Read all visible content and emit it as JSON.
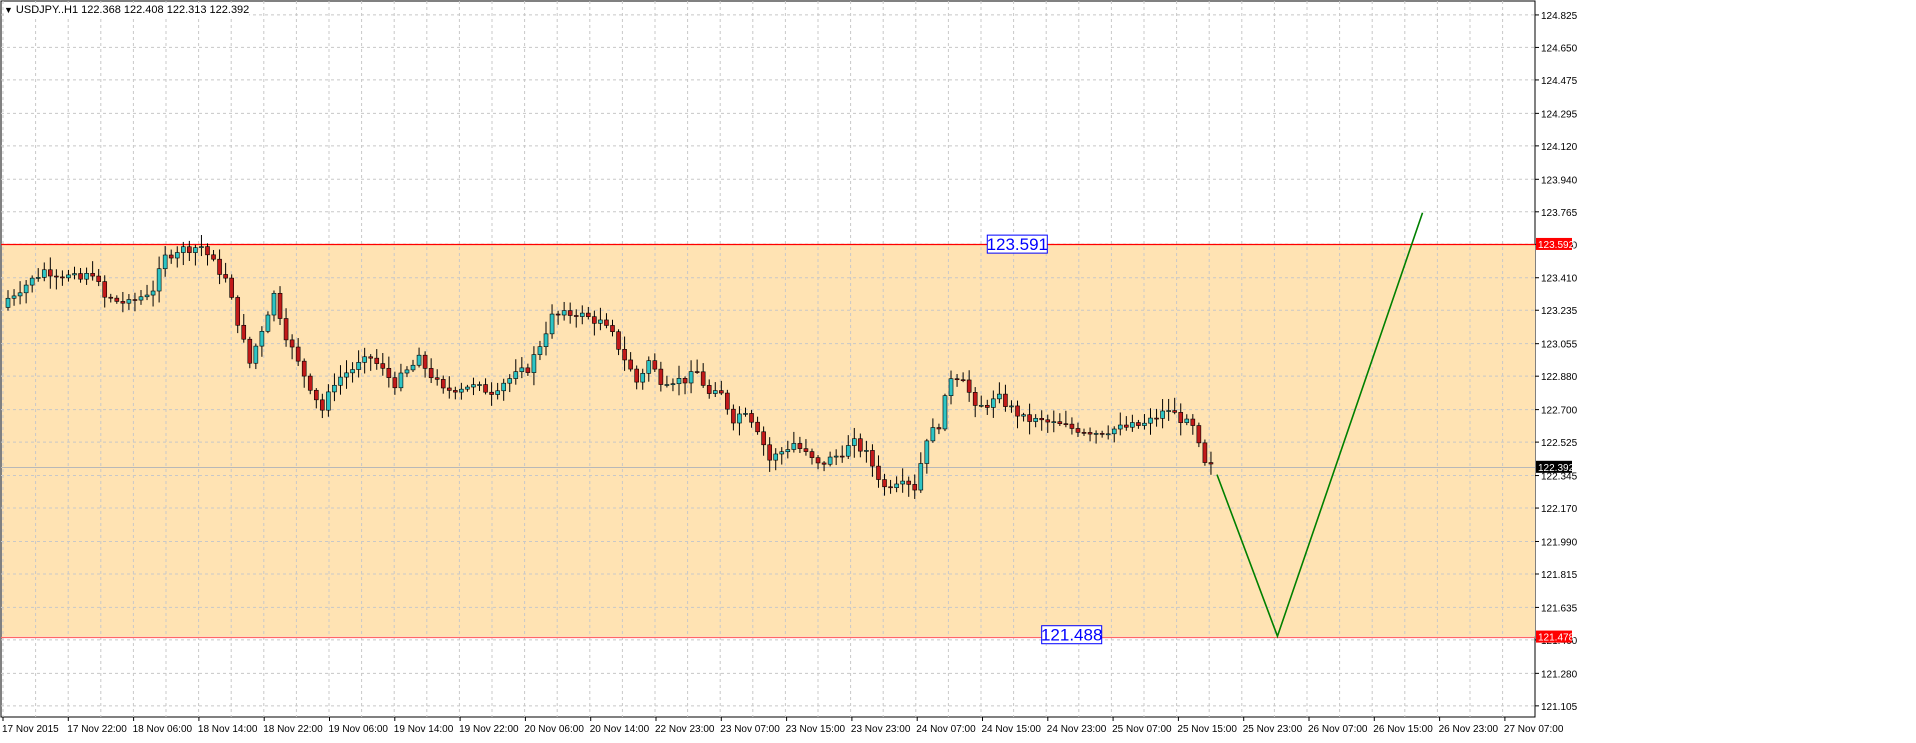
{
  "header": {
    "menu_icon": "triangle-down-icon",
    "symbol": "USDJPY..H1",
    "ohlc": "122.368 122.408 122.313 122.392"
  },
  "colors": {
    "background": "#ffffff",
    "zone_fill": "#ffe3b3",
    "grid": "#c8c8c8",
    "bull_candle": "#2ec4c4",
    "bear_candle": "#c21a1a",
    "candle_outline": "#000000",
    "upper_line": "#ff0000",
    "lower_line": "#ff6666",
    "projection_line": "#008000",
    "label_text": "#0000ff",
    "label_border": "#0000ff"
  },
  "chart_data": {
    "type": "candlestick",
    "symbol": "USDJPY",
    "timeframe": "H1",
    "y_ticks": [
      "124.825",
      "124.650",
      "124.475",
      "124.295",
      "124.120",
      "123.940",
      "123.765",
      "123.590",
      "123.410",
      "123.235",
      "123.055",
      "122.880",
      "122.700",
      "122.525",
      "122.345",
      "122.170",
      "121.990",
      "121.815",
      "121.635",
      "121.460",
      "121.280",
      "121.105"
    ],
    "ylim": [
      121.05,
      124.95
    ],
    "x_labels": [
      "17 Nov 2015",
      "17 Nov 22:00",
      "18 Nov 06:00",
      "18 Nov 14:00",
      "18 Nov 22:00",
      "19 Nov 06:00",
      "19 Nov 14:00",
      "19 Nov 22:00",
      "20 Nov 06:00",
      "20 Nov 14:00",
      "22 Nov 23:00",
      "23 Nov 07:00",
      "23 Nov 15:00",
      "23 Nov 23:00",
      "24 Nov 07:00",
      "24 Nov 15:00",
      "24 Nov 23:00",
      "25 Nov 07:00",
      "25 Nov 15:00",
      "25 Nov 23:00",
      "26 Nov 07:00",
      "26 Nov 15:00",
      "26 Nov 23:00",
      "27 Nov 07:00"
    ],
    "candle_count": 200,
    "candle_anchors": [
      [
        0,
        123.3
      ],
      [
        6,
        123.45
      ],
      [
        12,
        123.4
      ],
      [
        14,
        123.44
      ],
      [
        16,
        123.3
      ],
      [
        20,
        123.27
      ],
      [
        24,
        123.35
      ],
      [
        26,
        123.52
      ],
      [
        28,
        123.56
      ],
      [
        32,
        123.58
      ],
      [
        36,
        123.4
      ],
      [
        40,
        122.95
      ],
      [
        44,
        123.32
      ],
      [
        46,
        123.1
      ],
      [
        48,
        122.95
      ],
      [
        52,
        122.7
      ],
      [
        54,
        122.85
      ],
      [
        56,
        122.9
      ],
      [
        60,
        122.98
      ],
      [
        64,
        122.84
      ],
      [
        68,
        122.97
      ],
      [
        72,
        122.8
      ],
      [
        76,
        122.83
      ],
      [
        80,
        122.8
      ],
      [
        82,
        122.85
      ],
      [
        86,
        122.92
      ],
      [
        88,
        123.05
      ],
      [
        90,
        123.2
      ],
      [
        94,
        123.22
      ],
      [
        98,
        123.17
      ],
      [
        100,
        123.1
      ],
      [
        104,
        122.85
      ],
      [
        106,
        122.96
      ],
      [
        108,
        122.86
      ],
      [
        112,
        122.86
      ],
      [
        114,
        122.9
      ],
      [
        116,
        122.78
      ],
      [
        118,
        122.78
      ],
      [
        120,
        122.65
      ],
      [
        122,
        122.7
      ],
      [
        124,
        122.6
      ],
      [
        126,
        122.43
      ],
      [
        130,
        122.52
      ],
      [
        134,
        122.4
      ],
      [
        137,
        122.45
      ],
      [
        140,
        122.52
      ],
      [
        142,
        122.46
      ],
      [
        145,
        122.28
      ],
      [
        148,
        122.34
      ],
      [
        150,
        122.28
      ],
      [
        152,
        122.55
      ],
      [
        154,
        122.62
      ],
      [
        156,
        122.88
      ],
      [
        158,
        122.88
      ],
      [
        160,
        122.7
      ],
      [
        164,
        122.76
      ],
      [
        168,
        122.65
      ],
      [
        172,
        122.63
      ],
      [
        176,
        122.6
      ],
      [
        180,
        122.58
      ],
      [
        184,
        122.6
      ],
      [
        188,
        122.62
      ],
      [
        192,
        122.7
      ],
      [
        196,
        122.6
      ],
      [
        198,
        122.4
      ],
      [
        199,
        122.39
      ]
    ],
    "horizontal_lines": [
      {
        "name": "upper-level",
        "value": 123.592,
        "axis_label": "123.592"
      },
      {
        "name": "lower-level",
        "value": 121.478,
        "axis_label": "121.478"
      }
    ],
    "zone": {
      "from": 121.478,
      "to": 123.592
    },
    "price_labels": [
      {
        "text": "123.591",
        "value": 123.591,
        "at_candle": 162
      },
      {
        "text": "121.488",
        "value": 121.488,
        "at_candle": 171
      }
    ],
    "current_price": {
      "value": 122.392,
      "label": "122.392"
    },
    "projection": [
      {
        "candle": 200,
        "value": 122.35
      },
      {
        "candle": 210,
        "value": 121.48
      },
      {
        "candle": 234,
        "value": 123.76
      }
    ]
  }
}
